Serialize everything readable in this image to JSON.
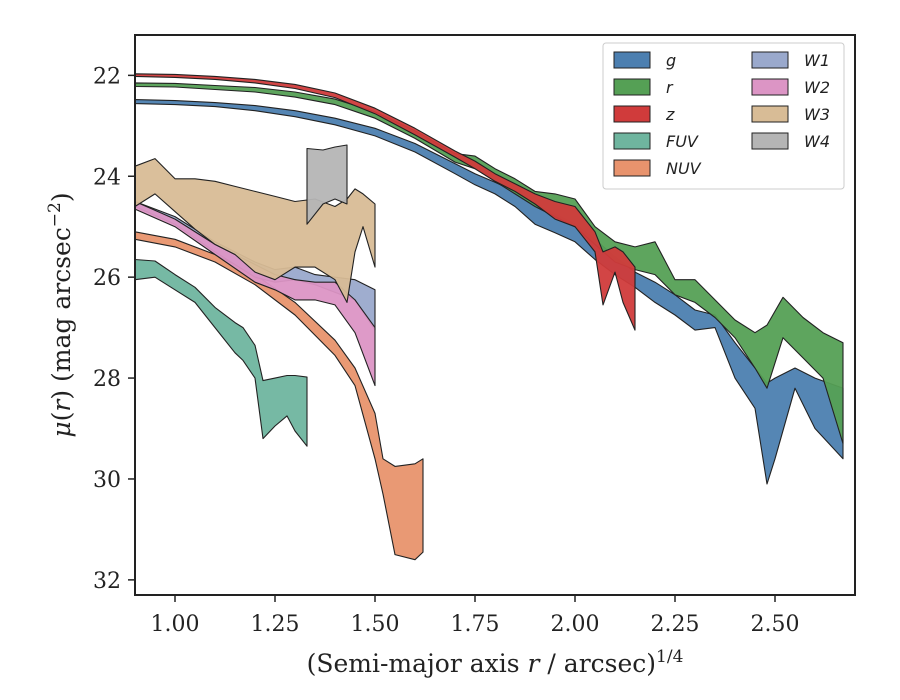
{
  "chart_data": {
    "type": "area",
    "xlabel": "(Semi-major axis r / arcsec)^1/4",
    "ylabel": "μ(r) (mag arcsec⁻²)",
    "xlim": [
      0.9,
      2.7
    ],
    "ylim": [
      32.3,
      21.2
    ],
    "y_inverted": true,
    "grid": false,
    "legend_position": "top-right",
    "legend_columns": 2,
    "xticks": [
      1.0,
      1.25,
      1.5,
      1.75,
      2.0,
      2.25,
      2.5
    ],
    "xtick_labels": [
      "1.00",
      "1.25",
      "1.50",
      "1.75",
      "2.00",
      "2.25",
      "2.50"
    ],
    "yticks": [
      22,
      24,
      26,
      28,
      30,
      32
    ],
    "ytick_labels": [
      "22",
      "24",
      "26",
      "28",
      "30",
      "32"
    ],
    "series": [
      {
        "name": "g",
        "color": "#4c7fb0",
        "points": [
          [
            0.9,
            22.48,
            22.56
          ],
          [
            1.0,
            22.5,
            22.58
          ],
          [
            1.1,
            22.54,
            22.62
          ],
          [
            1.2,
            22.6,
            22.7
          ],
          [
            1.3,
            22.7,
            22.82
          ],
          [
            1.4,
            22.85,
            22.98
          ],
          [
            1.5,
            23.05,
            23.2
          ],
          [
            1.6,
            23.35,
            23.52
          ],
          [
            1.7,
            23.75,
            23.95
          ],
          [
            1.75,
            23.95,
            24.17
          ],
          [
            1.8,
            24.12,
            24.35
          ],
          [
            1.85,
            24.3,
            24.6
          ],
          [
            1.9,
            24.55,
            24.95
          ],
          [
            1.95,
            24.75,
            25.12
          ],
          [
            2.0,
            24.95,
            25.3
          ],
          [
            2.05,
            25.25,
            25.65
          ],
          [
            2.1,
            25.6,
            25.95
          ],
          [
            2.15,
            25.9,
            26.2
          ],
          [
            2.2,
            26.1,
            26.5
          ],
          [
            2.25,
            26.35,
            26.75
          ],
          [
            2.3,
            26.65,
            27.05
          ],
          [
            2.35,
            26.75,
            27.0
          ],
          [
            2.4,
            27.3,
            28.0
          ],
          [
            2.45,
            27.8,
            28.6
          ],
          [
            2.48,
            28.1,
            30.1
          ],
          [
            2.5,
            28.0,
            29.6
          ],
          [
            2.55,
            27.8,
            28.2
          ],
          [
            2.6,
            28.0,
            29.0
          ],
          [
            2.67,
            28.2,
            29.6
          ]
        ]
      },
      {
        "name": "r",
        "color": "#55a055",
        "points": [
          [
            0.9,
            22.15,
            22.22
          ],
          [
            1.0,
            22.16,
            22.23
          ],
          [
            1.1,
            22.2,
            22.28
          ],
          [
            1.2,
            22.24,
            22.33
          ],
          [
            1.3,
            22.33,
            22.43
          ],
          [
            1.4,
            22.47,
            22.58
          ],
          [
            1.5,
            22.72,
            22.85
          ],
          [
            1.6,
            23.1,
            23.25
          ],
          [
            1.7,
            23.55,
            23.72
          ],
          [
            1.75,
            23.6,
            23.85
          ],
          [
            1.8,
            23.85,
            24.1
          ],
          [
            1.85,
            24.05,
            24.35
          ],
          [
            1.9,
            24.3,
            24.6
          ],
          [
            1.95,
            24.35,
            24.8
          ],
          [
            2.0,
            24.45,
            25.0
          ],
          [
            2.05,
            25.0,
            25.35
          ],
          [
            2.1,
            25.3,
            25.7
          ],
          [
            2.15,
            25.4,
            25.85
          ],
          [
            2.2,
            25.3,
            25.95
          ],
          [
            2.25,
            26.05,
            26.35
          ],
          [
            2.3,
            26.05,
            26.5
          ],
          [
            2.35,
            26.45,
            26.8
          ],
          [
            2.4,
            26.85,
            27.2
          ],
          [
            2.45,
            27.1,
            27.8
          ],
          [
            2.48,
            26.95,
            28.2
          ],
          [
            2.52,
            26.4,
            27.2
          ],
          [
            2.57,
            26.8,
            27.6
          ],
          [
            2.62,
            27.1,
            28.0
          ],
          [
            2.67,
            27.3,
            29.3
          ]
        ]
      },
      {
        "name": "z",
        "color": "#d03b3b",
        "points": [
          [
            0.9,
            21.97,
            22.02
          ],
          [
            1.0,
            21.98,
            22.04
          ],
          [
            1.1,
            22.02,
            22.08
          ],
          [
            1.2,
            22.08,
            22.15
          ],
          [
            1.3,
            22.18,
            22.26
          ],
          [
            1.4,
            22.35,
            22.44
          ],
          [
            1.5,
            22.65,
            22.76
          ],
          [
            1.6,
            23.05,
            23.18
          ],
          [
            1.7,
            23.5,
            23.62
          ],
          [
            1.75,
            23.7,
            23.85
          ],
          [
            1.8,
            23.95,
            24.1
          ],
          [
            1.85,
            24.15,
            24.3
          ],
          [
            1.9,
            24.35,
            24.55
          ],
          [
            1.95,
            24.5,
            24.85
          ],
          [
            2.0,
            24.6,
            25.0
          ],
          [
            2.05,
            25.1,
            25.5
          ],
          [
            2.07,
            25.5,
            26.55
          ],
          [
            2.1,
            25.4,
            25.9
          ],
          [
            2.12,
            25.5,
            26.5
          ],
          [
            2.15,
            25.8,
            27.05
          ]
        ]
      },
      {
        "name": "FUV",
        "color": "#6fb59f",
        "points": [
          [
            0.9,
            25.65,
            26.05
          ],
          [
            0.95,
            25.68,
            26.0
          ],
          [
            1.0,
            25.95,
            26.25
          ],
          [
            1.05,
            26.2,
            26.5
          ],
          [
            1.1,
            26.6,
            27.0
          ],
          [
            1.15,
            26.9,
            27.5
          ],
          [
            1.17,
            27.0,
            27.65
          ],
          [
            1.2,
            27.35,
            28.0
          ],
          [
            1.22,
            28.05,
            29.2
          ],
          [
            1.25,
            28.0,
            28.95
          ],
          [
            1.28,
            27.95,
            28.75
          ],
          [
            1.3,
            27.95,
            29.05
          ],
          [
            1.33,
            27.98,
            29.35
          ]
        ]
      },
      {
        "name": "NUV",
        "color": "#e8936d",
        "points": [
          [
            0.9,
            25.1,
            25.25
          ],
          [
            1.0,
            25.25,
            25.4
          ],
          [
            1.1,
            25.55,
            25.7
          ],
          [
            1.2,
            25.95,
            26.15
          ],
          [
            1.3,
            26.5,
            26.75
          ],
          [
            1.4,
            27.25,
            27.55
          ],
          [
            1.45,
            27.8,
            28.15
          ],
          [
            1.5,
            28.7,
            29.6
          ],
          [
            1.52,
            29.6,
            30.3
          ],
          [
            1.55,
            29.75,
            31.5
          ],
          [
            1.6,
            29.7,
            31.6
          ],
          [
            1.62,
            29.6,
            31.45
          ]
        ]
      },
      {
        "name": "W1",
        "color": "#9aa9cc",
        "points": [
          [
            0.9,
            24.5,
            24.6
          ],
          [
            1.0,
            24.8,
            24.95
          ],
          [
            1.1,
            25.3,
            25.5
          ],
          [
            1.2,
            25.7,
            26.0
          ],
          [
            1.25,
            25.85,
            26.1
          ],
          [
            1.3,
            25.8,
            26.05
          ],
          [
            1.35,
            25.95,
            26.15
          ],
          [
            1.4,
            26.0,
            26.3
          ],
          [
            1.45,
            26.05,
            26.45
          ],
          [
            1.5,
            26.25,
            27.05
          ]
        ]
      },
      {
        "name": "W2",
        "color": "#dc95c5",
        "points": [
          [
            0.9,
            24.5,
            24.65
          ],
          [
            1.0,
            24.85,
            25.0
          ],
          [
            1.1,
            25.35,
            25.55
          ],
          [
            1.2,
            25.75,
            26.1
          ],
          [
            1.25,
            25.95,
            26.25
          ],
          [
            1.3,
            26.05,
            26.45
          ],
          [
            1.35,
            26.1,
            26.45
          ],
          [
            1.4,
            26.1,
            26.55
          ],
          [
            1.45,
            26.45,
            27.1
          ],
          [
            1.5,
            27.0,
            28.15
          ]
        ]
      },
      {
        "name": "W3",
        "color": "#d8bc96",
        "points": [
          [
            0.9,
            23.8,
            24.6
          ],
          [
            0.95,
            23.65,
            24.35
          ],
          [
            1.0,
            24.05,
            24.7
          ],
          [
            1.05,
            24.05,
            25.05
          ],
          [
            1.1,
            24.1,
            25.35
          ],
          [
            1.15,
            24.2,
            25.55
          ],
          [
            1.2,
            24.3,
            25.9
          ],
          [
            1.25,
            24.4,
            26.05
          ],
          [
            1.3,
            24.5,
            25.8
          ],
          [
            1.35,
            24.45,
            25.8
          ],
          [
            1.4,
            24.6,
            26.05
          ],
          [
            1.43,
            24.45,
            26.5
          ],
          [
            1.45,
            24.25,
            25.5
          ],
          [
            1.47,
            24.35,
            25.0
          ],
          [
            1.5,
            24.55,
            25.8
          ]
        ]
      },
      {
        "name": "W4",
        "color": "#b5b5b5",
        "points": [
          [
            1.33,
            23.45,
            24.95
          ],
          [
            1.37,
            23.48,
            24.55
          ],
          [
            1.4,
            23.42,
            24.45
          ],
          [
            1.43,
            23.38,
            24.55
          ]
        ]
      }
    ]
  }
}
